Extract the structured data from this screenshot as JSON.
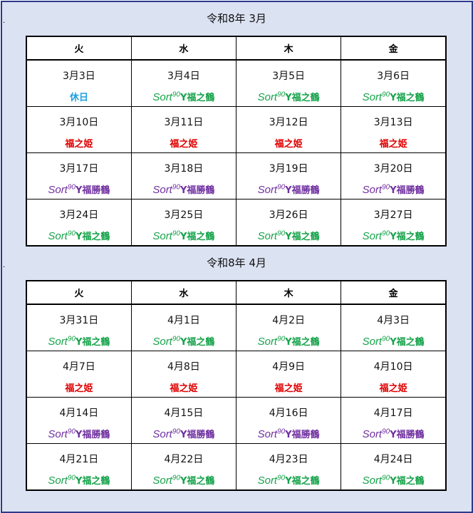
{
  "colors": {
    "rest": "#1ea0e0",
    "tsuru": "#16a34a",
    "hime": "#e00000",
    "katsu": "#7030a0"
  },
  "labels": {
    "rest": {
      "text": "休日"
    },
    "hime": {
      "text": "福之姫"
    },
    "tsuru": {
      "s": "Sort",
      "sup": "90",
      "rest": "Y福之鶴"
    },
    "katsu": {
      "s": "Sort",
      "sup": "90",
      "rest": "Y福勝鶴"
    }
  },
  "calendars": [
    {
      "title": "令和8年 3月",
      "headers": [
        "火",
        "水",
        "木",
        "金"
      ],
      "rows": [
        [
          {
            "date": "3月3日",
            "type": "rest"
          },
          {
            "date": "3月4日",
            "type": "tsuru"
          },
          {
            "date": "3月5日",
            "type": "tsuru"
          },
          {
            "date": "3月6日",
            "type": "tsuru"
          }
        ],
        [
          {
            "date": "3月10日",
            "type": "hime"
          },
          {
            "date": "3月11日",
            "type": "hime"
          },
          {
            "date": "3月12日",
            "type": "hime"
          },
          {
            "date": "3月13日",
            "type": "hime"
          }
        ],
        [
          {
            "date": "3月17日",
            "type": "katsu"
          },
          {
            "date": "3月18日",
            "type": "katsu"
          },
          {
            "date": "3月19日",
            "type": "katsu"
          },
          {
            "date": "3月20日",
            "type": "katsu"
          }
        ],
        [
          {
            "date": "3月24日",
            "type": "tsuru"
          },
          {
            "date": "3月25日",
            "type": "tsuru"
          },
          {
            "date": "3月26日",
            "type": "tsuru"
          },
          {
            "date": "3月27日",
            "type": "tsuru"
          }
        ]
      ]
    },
    {
      "title": "令和8年 4月",
      "headers": [
        "火",
        "水",
        "木",
        "金"
      ],
      "rows": [
        [
          {
            "date": "3月31日",
            "type": "tsuru"
          },
          {
            "date": "4月1日",
            "type": "tsuru"
          },
          {
            "date": "4月2日",
            "type": "tsuru"
          },
          {
            "date": "4月3日",
            "type": "tsuru"
          }
        ],
        [
          {
            "date": "4月7日",
            "type": "hime"
          },
          {
            "date": "4月8日",
            "type": "hime"
          },
          {
            "date": "4月9日",
            "type": "hime"
          },
          {
            "date": "4月10日",
            "type": "hime"
          }
        ],
        [
          {
            "date": "4月14日",
            "type": "katsu"
          },
          {
            "date": "4月15日",
            "type": "katsu"
          },
          {
            "date": "4月16日",
            "type": "katsu"
          },
          {
            "date": "4月17日",
            "type": "katsu"
          }
        ],
        [
          {
            "date": "4月21日",
            "type": "tsuru"
          },
          {
            "date": "4月22日",
            "type": "tsuru"
          },
          {
            "date": "4月23日",
            "type": "tsuru"
          },
          {
            "date": "4月24日",
            "type": "tsuru"
          }
        ]
      ]
    }
  ]
}
